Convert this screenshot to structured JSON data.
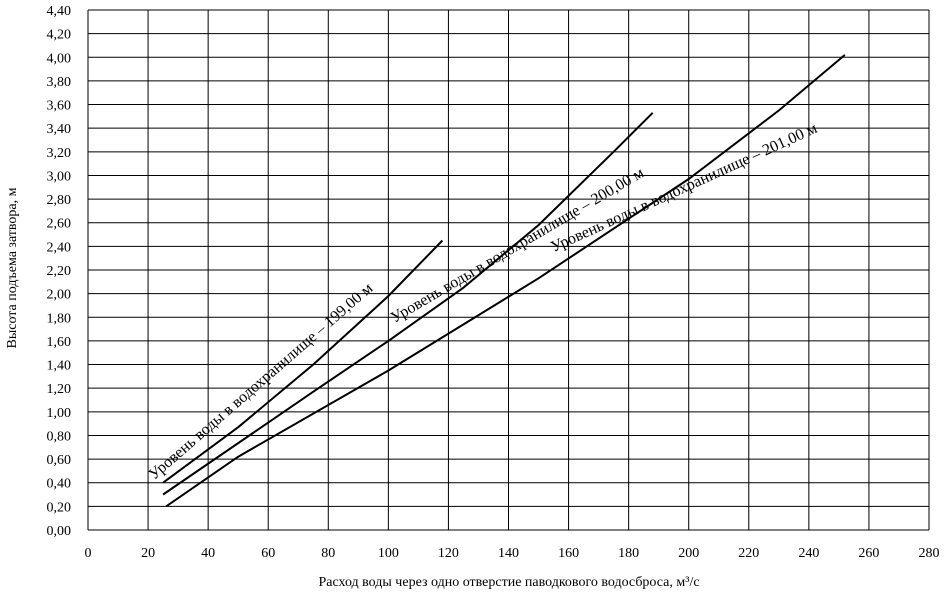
{
  "chart_data": {
    "type": "line",
    "xlabel": "Расход воды через одно отверстие паводкового водосброса, м³/с",
    "ylabel": "Высота подъема затвора, м",
    "xlim": [
      0,
      280
    ],
    "ylim": [
      0,
      4.4
    ],
    "x_ticks": [
      "0",
      "20",
      "40",
      "60",
      "80",
      "100",
      "120",
      "140",
      "160",
      "180",
      "200",
      "220",
      "240",
      "260",
      "280"
    ],
    "y_ticks": [
      "0,00",
      "0,20",
      "0,40",
      "0,60",
      "0,80",
      "1,00",
      "1,20",
      "1,40",
      "1,60",
      "1,80",
      "2,00",
      "2,20",
      "2,40",
      "2,60",
      "2,80",
      "3,00",
      "3,20",
      "3,40",
      "3,60",
      "3,80",
      "4,00",
      "4,20",
      "4,40"
    ],
    "grid": true,
    "legend": "none",
    "series": [
      {
        "name": "Уровень воды в водохранилище – 199,00 м",
        "x": [
          25,
          50,
          75,
          100,
          118
        ],
        "y": [
          0.4,
          0.87,
          1.4,
          1.98,
          2.45
        ],
        "label_angle": -41,
        "label_anchor": [
          22,
          0.42
        ]
      },
      {
        "name": "Уровень воды в водохранилище – 200,00 м",
        "x": [
          25,
          75,
          100,
          125,
          150,
          175,
          188
        ],
        "y": [
          0.3,
          1.17,
          1.6,
          2.05,
          2.58,
          3.2,
          3.53
        ],
        "label_angle": -30.5,
        "label_anchor": [
          102,
          1.75
        ]
      },
      {
        "name": "Уровень воды в водохранилище – 201,00 м",
        "x": [
          26,
          50,
          100,
          150,
          200,
          230,
          252
        ],
        "y": [
          0.2,
          0.62,
          1.35,
          2.13,
          2.97,
          3.55,
          4.02
        ],
        "label_angle": -24.5,
        "label_anchor": [
          155,
          2.35
        ]
      }
    ]
  }
}
